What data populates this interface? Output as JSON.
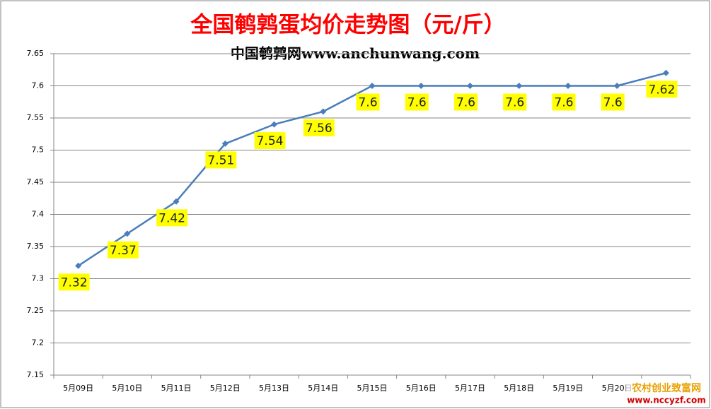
{
  "chart_data": {
    "type": "line",
    "title": "全国鹌鹑蛋均价走势图（元/斤）",
    "subtitle": "中国鹌鹑网www.anchunwang.com",
    "categories": [
      "5月09日",
      "5月10日",
      "5月11日",
      "5月12日",
      "5月13日",
      "5月14日",
      "5月15日",
      "5月16日",
      "5月17日",
      "5月18日",
      "5月19日",
      "5月20日",
      null
    ],
    "values": [
      7.32,
      7.37,
      7.42,
      7.51,
      7.54,
      7.56,
      7.6,
      7.6,
      7.6,
      7.6,
      7.6,
      7.6,
      7.62
    ],
    "color": "#4a7ebb",
    "ylim": [
      7.15,
      7.65
    ],
    "yticks": [
      7.15,
      7.2,
      7.25,
      7.3,
      7.35,
      7.4,
      7.45,
      7.5,
      7.55,
      7.6,
      7.65
    ],
    "grid": true
  },
  "watermark": {
    "name": "农村创业致富网",
    "url": "www.nccyzf.com"
  }
}
